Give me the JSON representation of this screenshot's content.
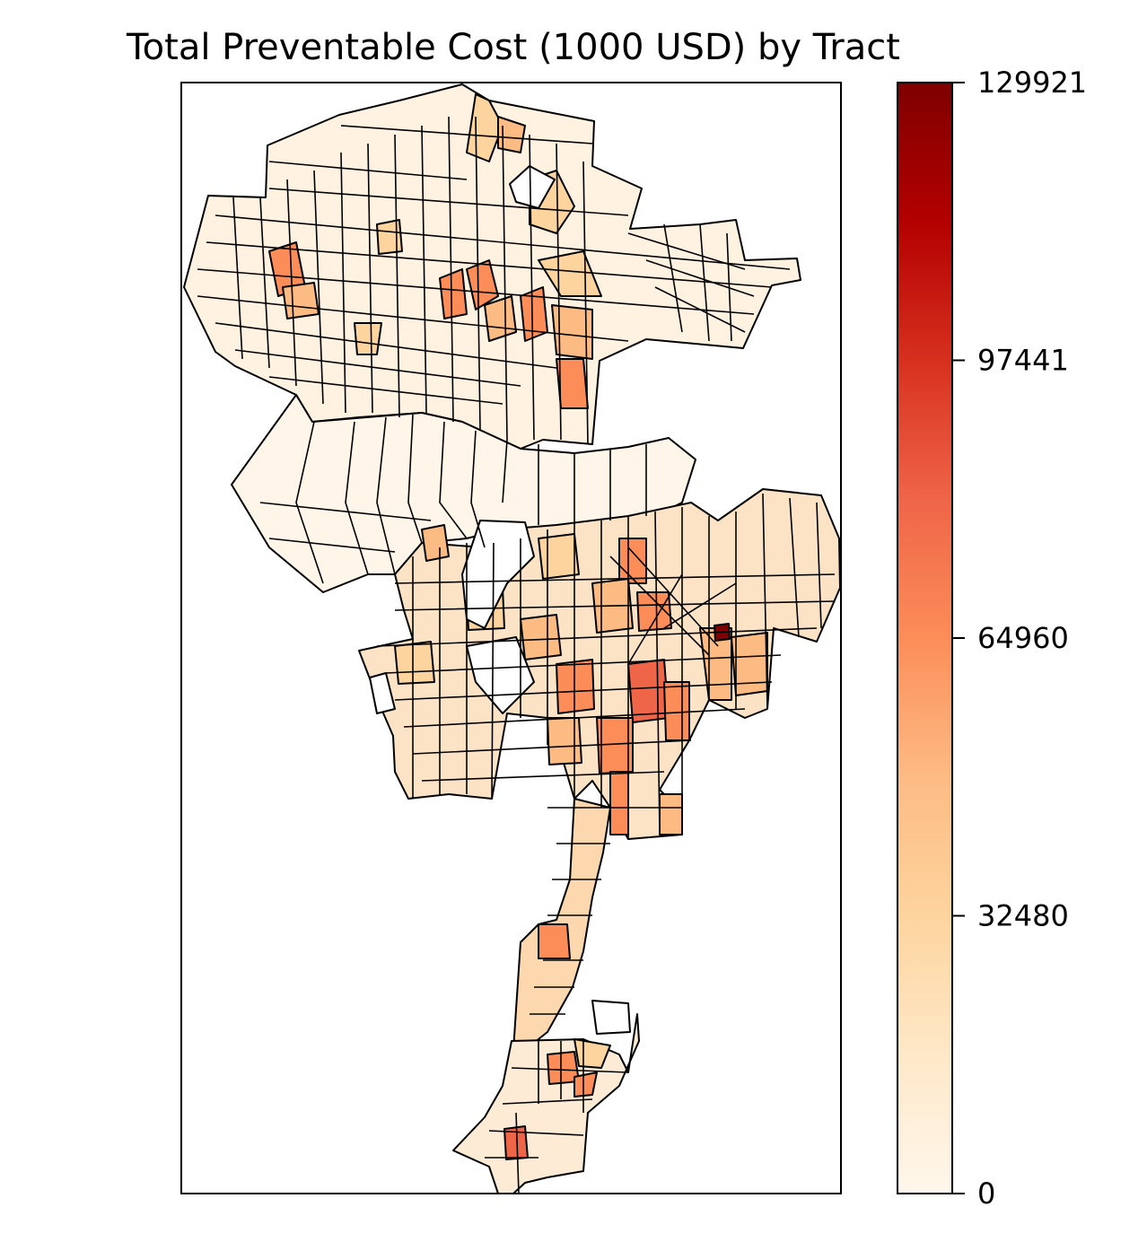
{
  "map": {
    "title": "Total Preventable Cost (1000 USD) by Tract",
    "colormap": "OrRd",
    "edge_color": "#000000"
  },
  "colorbar": {
    "min": 0,
    "max": 129921,
    "ticks": [
      {
        "value": 0,
        "label": "0"
      },
      {
        "value": 32480,
        "label": "32480"
      },
      {
        "value": 64960,
        "label": "64960"
      },
      {
        "value": 97441,
        "label": "97441"
      },
      {
        "value": 129921,
        "label": "129921"
      }
    ],
    "stops": [
      "#fff7ec",
      "#fee8c8",
      "#fdd49e",
      "#fdbb84",
      "#fc8d59",
      "#ef6548",
      "#d7301f",
      "#b30000",
      "#7f0000"
    ]
  }
}
